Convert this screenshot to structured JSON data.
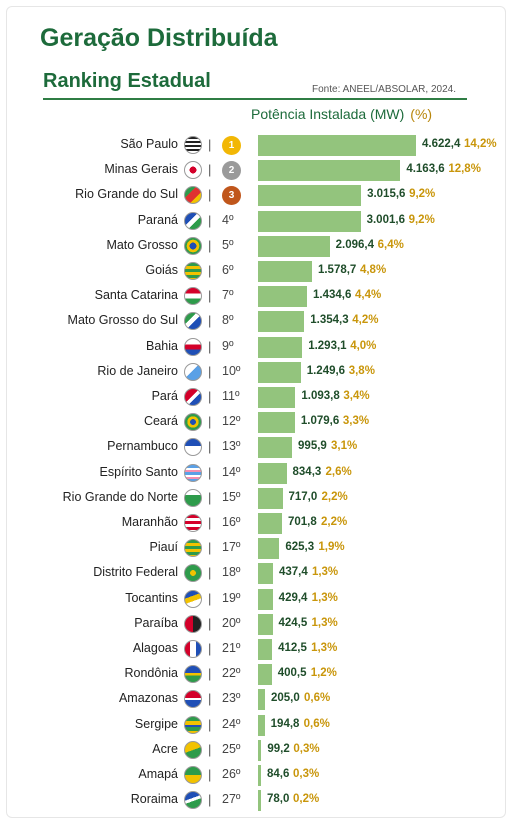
{
  "header": {
    "title": "Geração Distribuída",
    "subtitle": "Ranking Estadual",
    "source": "Fonte: ANEEL/ABSOLAR, 2024.",
    "value_header": "Potência Instalada (MW)",
    "pct_header": "(%)"
  },
  "colors": {
    "title_green": "#1d6b3b",
    "bar_green": "#93c47d",
    "pct_gold": "#c9960b",
    "gold_medal": "#f2b705",
    "silver_medal": "#9a9a9a",
    "bronze_medal": "#c0561b"
  },
  "chart_data": {
    "type": "bar",
    "orientation": "horizontal",
    "title": "Geração Distribuída",
    "subtitle": "Ranking Estadual",
    "xlabel": "Potência Instalada (MW)",
    "categories": [
      "São Paulo",
      "Minas Gerais",
      "Rio Grande do Sul",
      "Paraná",
      "Mato Grosso",
      "Goiás",
      "Santa Catarina",
      "Mato Grosso do Sul",
      "Bahia",
      "Rio de Janeiro",
      "Pará",
      "Ceará",
      "Pernambuco",
      "Espírito Santo",
      "Rio Grande do Norte",
      "Maranhão",
      "Piauí",
      "Distrito Federal",
      "Tocantins",
      "Paraíba",
      "Alagoas",
      "Rondônia",
      "Amazonas",
      "Sergipe",
      "Acre",
      "Amapá",
      "Roraima"
    ],
    "values": [
      4622.4,
      4163.6,
      3015.6,
      3001.6,
      2096.4,
      1578.7,
      1434.6,
      1354.3,
      1293.1,
      1249.6,
      1093.8,
      1079.6,
      995.9,
      834.3,
      717.0,
      701.8,
      625.3,
      437.4,
      429.4,
      424.5,
      412.5,
      400.5,
      205.0,
      194.8,
      99.2,
      84.6,
      78.0
    ],
    "value_labels": [
      "4.622,4",
      "4.163,6",
      "3.015,6",
      "3.001,6",
      "2.096,4",
      "1.578,7",
      "1.434,6",
      "1.354,3",
      "1.293,1",
      "1.249,6",
      "1.093,8",
      "1.079,6",
      "995,9",
      "834,3",
      "717,0",
      "701,8",
      "625,3",
      "437,4",
      "429,4",
      "424,5",
      "412,5",
      "400,5",
      "205,0",
      "194,8",
      "99,2",
      "84,6",
      "78,0"
    ],
    "percent_labels": [
      "14,2%",
      "12,8%",
      "9,2%",
      "9,2%",
      "6,4%",
      "4,8%",
      "4,4%",
      "4,2%",
      "4,0%",
      "3,8%",
      "3,4%",
      "3,3%",
      "3,1%",
      "2,6%",
      "2,2%",
      "2,2%",
      "1,9%",
      "1,3%",
      "1,3%",
      "1,3%",
      "1,3%",
      "1,2%",
      "0,6%",
      "0,6%",
      "0,3%",
      "0,3%",
      "0,2%"
    ],
    "rank_labels": [
      "1",
      "2",
      "3",
      "4º",
      "5º",
      "6º",
      "7º",
      "8º",
      "9º",
      "10º",
      "11º",
      "12º",
      "13º",
      "14º",
      "15º",
      "16º",
      "17º",
      "18º",
      "19º",
      "20º",
      "21º",
      "22º",
      "23º",
      "24º",
      "25º",
      "26º",
      "27º"
    ]
  }
}
